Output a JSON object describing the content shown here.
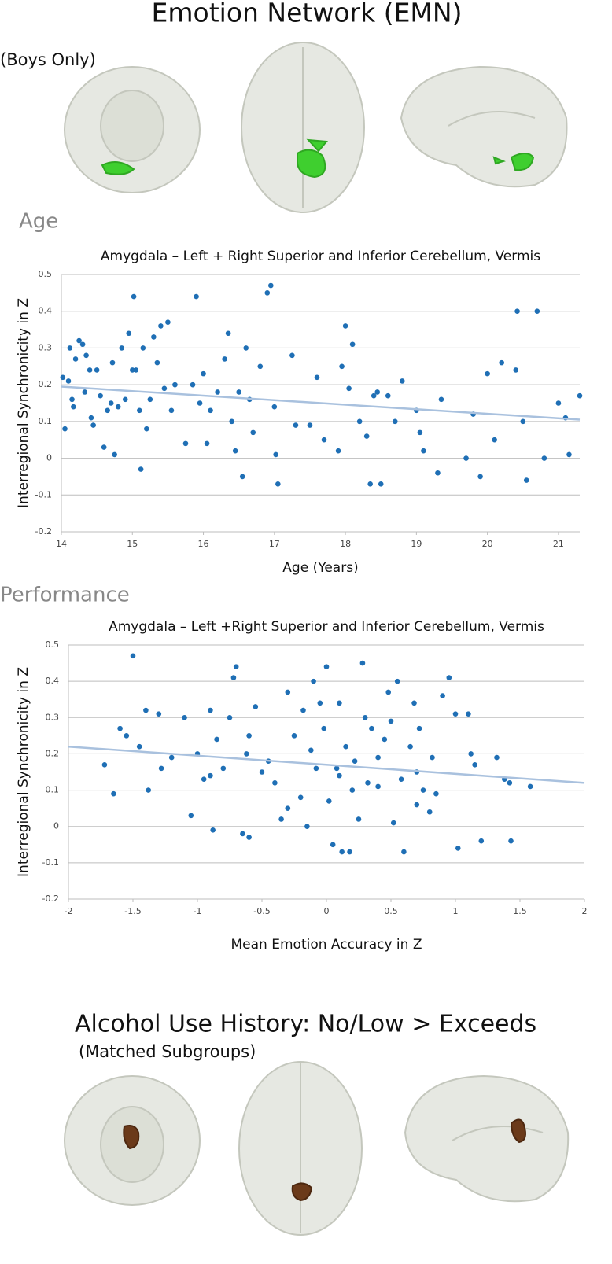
{
  "header": {
    "title": "Emotion Network (EMN)",
    "subtitle": "(Boys Only)"
  },
  "sections": [
    "Age",
    "Performance"
  ],
  "footer": {
    "title": "Alcohol Use History:  No/Low > Exceeds",
    "subtitle": "(Matched Subgroups)"
  },
  "chart_data": [
    {
      "type": "scatter",
      "title": "Amygdala – Left + Right Superior and Inferior Cerebellum, Vermis",
      "x_label": "Age (Years)",
      "y_label": "Interregional Synchronicity in Z",
      "color": "#1f6fb5",
      "trend_color": "#a9c1de",
      "grid": true,
      "xlim": [
        14,
        21.3
      ],
      "ylim": [
        -0.2,
        0.5
      ],
      "xticks": [
        14,
        15,
        16,
        17,
        18,
        19,
        20,
        21
      ],
      "yticks": [
        -0.2,
        -0.1,
        0,
        0.1,
        0.2,
        0.3,
        0.4,
        0.5
      ],
      "x": [
        14.02,
        14.05,
        14.1,
        14.12,
        14.15,
        14.17,
        14.2,
        14.25,
        14.3,
        14.33,
        14.35,
        14.4,
        14.42,
        14.45,
        14.5,
        14.55,
        14.6,
        14.65,
        14.7,
        14.72,
        14.75,
        14.8,
        14.85,
        14.9,
        14.95,
        15.0,
        15.02,
        15.05,
        15.1,
        15.12,
        15.15,
        15.2,
        15.25,
        15.3,
        15.35,
        15.4,
        15.45,
        15.5,
        15.55,
        15.6,
        15.75,
        15.85,
        15.9,
        15.95,
        16.0,
        16.05,
        16.1,
        16.2,
        16.3,
        16.35,
        16.4,
        16.45,
        16.5,
        16.55,
        16.6,
        16.65,
        16.7,
        16.8,
        16.9,
        16.95,
        17.0,
        17.02,
        17.05,
        17.25,
        17.3,
        17.5,
        17.6,
        17.7,
        17.9,
        17.95,
        18.0,
        18.05,
        18.1,
        18.2,
        18.3,
        18.35,
        18.4,
        18.45,
        18.5,
        18.6,
        18.7,
        18.8,
        19.0,
        19.05,
        19.1,
        19.3,
        19.35,
        19.7,
        19.8,
        19.9,
        20.0,
        20.1,
        20.2,
        20.4,
        20.42,
        20.5,
        20.55,
        20.7,
        20.8,
        21.0,
        21.1,
        21.15,
        21.3
      ],
      "y": [
        0.22,
        0.08,
        0.21,
        0.3,
        0.16,
        0.14,
        0.27,
        0.32,
        0.31,
        0.18,
        0.28,
        0.24,
        0.11,
        0.09,
        0.24,
        0.17,
        0.03,
        0.13,
        0.15,
        0.26,
        0.01,
        0.14,
        0.3,
        0.16,
        0.34,
        0.24,
        0.44,
        0.24,
        0.13,
        -0.03,
        0.3,
        0.08,
        0.16,
        0.33,
        0.26,
        0.36,
        0.19,
        0.37,
        0.13,
        0.2,
        0.04,
        0.2,
        0.44,
        0.15,
        0.23,
        0.04,
        0.13,
        0.18,
        0.27,
        0.34,
        0.1,
        0.02,
        0.18,
        -0.05,
        0.3,
        0.16,
        0.07,
        0.25,
        0.45,
        0.47,
        0.14,
        0.01,
        -0.07,
        0.28,
        0.09,
        0.09,
        0.22,
        0.05,
        0.02,
        0.25,
        0.36,
        0.19,
        0.31,
        0.1,
        0.06,
        -0.07,
        0.17,
        0.18,
        -0.07,
        0.17,
        0.1,
        0.21,
        0.13,
        0.07,
        0.02,
        -0.04,
        0.16,
        0.0,
        0.12,
        -0.05,
        0.23,
        0.05,
        0.26,
        0.24,
        0.4,
        0.1,
        -0.06,
        0.4,
        0.0,
        0.15,
        0.11,
        0.01,
        0.17
      ],
      "trend": {
        "x": [
          14,
          21.3
        ],
        "y": [
          0.195,
          0.105
        ]
      }
    },
    {
      "type": "scatter",
      "title": "Amygdala – Left +Right Superior and Inferior Cerebellum, Vermis",
      "x_label": "Mean Emotion Accuracy in Z",
      "y_label": "Interregional Synchronicity in Z",
      "color": "#1f6fb5",
      "trend_color": "#a9c1de",
      "grid": true,
      "xlim": [
        -2,
        2
      ],
      "ylim": [
        -0.2,
        0.5
      ],
      "xticks": [
        -2,
        -1.5,
        -1,
        -0.5,
        0,
        0.5,
        1,
        1.5,
        2
      ],
      "yticks": [
        -0.2,
        -0.1,
        0,
        0.1,
        0.2,
        0.3,
        0.4,
        0.5
      ],
      "x": [
        -1.72,
        -1.65,
        -1.6,
        -1.55,
        -1.5,
        -1.45,
        -1.4,
        -1.38,
        -1.3,
        -1.28,
        -1.2,
        -1.1,
        -1.05,
        -1.0,
        -0.95,
        -0.9,
        -0.88,
        -0.85,
        -0.8,
        -0.75,
        -0.72,
        -0.7,
        -0.65,
        -0.62,
        -0.6,
        -0.55,
        -0.5,
        -0.45,
        -0.4,
        -0.35,
        -0.3,
        -0.25,
        -0.2,
        -0.18,
        -0.15,
        -0.12,
        -0.1,
        -0.08,
        -0.05,
        -0.02,
        0.0,
        0.02,
        0.05,
        0.08,
        0.1,
        0.12,
        0.15,
        0.18,
        0.2,
        0.22,
        0.25,
        0.28,
        0.3,
        0.32,
        0.35,
        0.4,
        0.45,
        0.48,
        0.5,
        0.52,
        0.55,
        0.58,
        0.6,
        0.65,
        0.68,
        0.7,
        0.72,
        0.75,
        0.8,
        0.82,
        0.85,
        0.9,
        0.95,
        1.0,
        1.02,
        1.1,
        1.12,
        1.15,
        1.2,
        1.32,
        1.38,
        1.42,
        1.43,
        1.58,
        -0.3,
        0.1,
        -0.6,
        0.4,
        -0.9,
        0.7
      ],
      "y": [
        0.17,
        0.09,
        0.27,
        0.25,
        0.47,
        0.22,
        0.32,
        0.1,
        0.31,
        0.16,
        0.19,
        0.3,
        0.03,
        0.2,
        0.13,
        0.32,
        -0.01,
        0.24,
        0.16,
        0.3,
        0.41,
        0.44,
        -0.02,
        0.2,
        -0.03,
        0.33,
        0.15,
        0.18,
        0.12,
        0.02,
        0.37,
        0.25,
        0.08,
        0.32,
        0.0,
        0.21,
        0.4,
        0.16,
        0.34,
        0.27,
        0.44,
        0.07,
        -0.05,
        0.16,
        0.34,
        -0.07,
        0.22,
        -0.07,
        0.1,
        0.18,
        0.02,
        0.45,
        0.3,
        0.12,
        0.27,
        0.11,
        0.24,
        0.37,
        0.29,
        0.01,
        0.4,
        0.13,
        -0.07,
        0.22,
        0.34,
        0.06,
        0.27,
        0.1,
        0.04,
        0.19,
        0.09,
        0.36,
        0.41,
        0.31,
        -0.06,
        0.31,
        0.2,
        0.17,
        -0.04,
        0.19,
        0.13,
        0.12,
        -0.04,
        0.11,
        0.05,
        0.14,
        0.25,
        0.19,
        0.14,
        0.15
      ],
      "trend": {
        "x": [
          -2,
          2
        ],
        "y": [
          0.22,
          0.12
        ]
      }
    }
  ]
}
